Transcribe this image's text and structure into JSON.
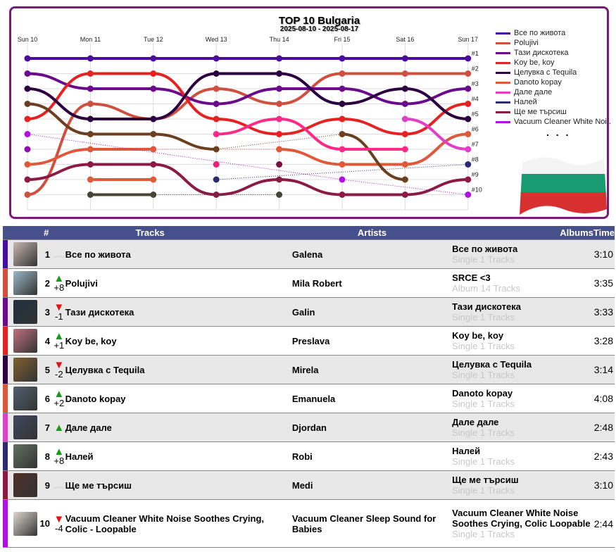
{
  "chart_data": {
    "type": "line",
    "title": "TOP 10 Bulgaria",
    "subtitle": "2025-08-10 - 2025-08-17",
    "x": [
      "Sun 10",
      "Mon 11",
      "Tue 12",
      "Wed 13",
      "Thu 14",
      "Fri 15",
      "Sat 16",
      "Sun 17"
    ],
    "rank_labels": [
      "#1",
      "#2",
      "#3",
      "#4",
      "#5",
      "#6",
      "#7",
      "#8",
      "#9",
      "#10"
    ],
    "ylim": [
      1,
      10
    ],
    "legend_more": ". . .",
    "series": [
      {
        "name": "Все по живота",
        "color": "#4a0ca0",
        "values": [
          1,
          1,
          1,
          1,
          1,
          1,
          1,
          1
        ]
      },
      {
        "name": "Polujivi",
        "color": "#d05040",
        "values": [
          10,
          4,
          5,
          3,
          4,
          2,
          2,
          2
        ]
      },
      {
        "name": "Тази дискотека",
        "color": "#6c0a8c",
        "values": [
          2,
          3,
          3,
          4,
          3,
          3,
          4,
          3
        ]
      },
      {
        "name": "Koy be, koy",
        "color": "#e52222",
        "values": [
          5,
          2,
          2,
          5,
          6,
          5,
          6,
          4
        ]
      },
      {
        "name": "Целувка с Tequila",
        "color": "#2c0040",
        "values": [
          3,
          5,
          5,
          2,
          2,
          4,
          3,
          5
        ]
      },
      {
        "name": "Danoto kopay",
        "color": "#e0583a",
        "values": [
          8,
          7,
          7,
          null,
          7,
          8,
          8,
          6
        ]
      },
      {
        "name": "Дале дале",
        "color": "#e040c8",
        "values": [
          null,
          null,
          null,
          null,
          null,
          null,
          5,
          7
        ]
      },
      {
        "name": "Налей",
        "color": "#2c2a70",
        "values": [
          null,
          null,
          null,
          9,
          null,
          null,
          null,
          8
        ]
      },
      {
        "name": "Ще ме търсиш",
        "color": "#8c1a44",
        "values": [
          9,
          8,
          8,
          10,
          9,
          10,
          10,
          9
        ]
      },
      {
        "name": "Vacuum Cleaner White Noi..",
        "color": "#b010e0",
        "values": [
          6,
          null,
          null,
          null,
          null,
          9,
          null,
          10
        ]
      },
      {
        "name": "",
        "color": "#6b3f1f",
        "values": [
          4,
          6,
          6,
          7,
          null,
          6,
          9,
          null
        ]
      },
      {
        "name": "",
        "color": "#ff2a88",
        "values": [
          null,
          null,
          null,
          6,
          5,
          7,
          7,
          null
        ]
      },
      {
        "name": "",
        "color": "#e05a3a",
        "values": [
          null,
          9,
          9,
          null,
          null,
          null,
          null,
          null
        ]
      },
      {
        "name": "",
        "color": "#454535",
        "values": [
          null,
          10,
          10,
          null,
          10,
          null,
          null,
          null
        ]
      },
      {
        "name": "",
        "color": "#9010b0",
        "values": [
          7,
          null,
          null,
          null,
          null,
          null,
          null,
          null
        ]
      },
      {
        "name": "",
        "color": "#e8207a",
        "values": [
          null,
          null,
          null,
          8,
          null,
          null,
          null,
          null
        ]
      },
      {
        "name": "",
        "color": "#7a1040",
        "values": [
          null,
          null,
          null,
          null,
          8,
          null,
          null,
          null
        ]
      }
    ]
  },
  "table": {
    "headers": {
      "num": "#",
      "tracks": "Tracks",
      "artists": "Artists",
      "albums": "Albums",
      "time": "Time"
    },
    "rows": [
      {
        "rank": "1",
        "dir": "same",
        "change": "",
        "track": "Все по живота",
        "artist": "Galena",
        "album": "Все по живота",
        "album_sub": "Single 1 Tracks",
        "time": "3:10",
        "color": "#4a0ca0",
        "thumb": "#c8b8b0"
      },
      {
        "rank": "2",
        "dir": "up",
        "change": "+8",
        "track": "Polujivi",
        "artist": "Mila Robert",
        "album": "SRCE <3",
        "album_sub": "Album 14 Tracks",
        "time": "3:35",
        "color": "#d05040",
        "thumb": "#9ab8c8"
      },
      {
        "rank": "3",
        "dir": "down",
        "change": "-1",
        "track": "Тази дискотека",
        "artist": "Galin",
        "album": "Тази дискотека",
        "album_sub": "Single 1 Tracks",
        "time": "3:33",
        "color": "#6c0a8c",
        "thumb": "#203040"
      },
      {
        "rank": "4",
        "dir": "up",
        "change": "+1",
        "track": "Koy be, koy",
        "artist": "Preslava",
        "album": "Koy be, koy",
        "album_sub": "Single 1 Tracks",
        "time": "3:28",
        "color": "#e52222",
        "thumb": "#c07080"
      },
      {
        "rank": "5",
        "dir": "down",
        "change": "-2",
        "track": "Целувка с Tequila",
        "artist": "Mirela",
        "album": "Целувка с Tequila",
        "album_sub": "Single 1 Tracks",
        "time": "3:14",
        "color": "#2c0040",
        "thumb": "#806030"
      },
      {
        "rank": "6",
        "dir": "up",
        "change": "+2",
        "track": "Danoto kopay",
        "artist": "Emanuela",
        "album": "Danoto kopay",
        "album_sub": "Single 1 Tracks",
        "time": "4:08",
        "color": "#e0583a",
        "thumb": "#506070"
      },
      {
        "rank": "7",
        "dir": "up",
        "change": "",
        "track": "Дале дале",
        "artist": "Djordan",
        "album": "Дале дале",
        "album_sub": "Single 1 Tracks",
        "time": "2:48",
        "color": "#e040c8",
        "thumb": "#404860"
      },
      {
        "rank": "8",
        "dir": "up",
        "change": "+8",
        "track": "Налей",
        "artist": "Robi",
        "album": "Налей",
        "album_sub": "Single 1 Tracks",
        "time": "2:43",
        "color": "#2c2a70",
        "thumb": "#607060"
      },
      {
        "rank": "9",
        "dir": "same",
        "change": "",
        "track": "Ще ме търсиш",
        "artist": "Medi",
        "album": "Ще ме търсиш",
        "album_sub": "Single 1 Tracks",
        "time": "3:10",
        "color": "#8c1a44",
        "thumb": "#503028"
      },
      {
        "rank": "10",
        "dir": "down",
        "change": "-4",
        "track": "Vacuum Cleaner White Noise Soothes Crying, Colic - Loopable",
        "artist": "Vacuum Cleaner Sleep Sound for Babies",
        "album": "Vacuum Cleaner White Noise Soothes Crying, Colic Loopable",
        "album_sub": "Single 1 Tracks",
        "time": "2:44",
        "color": "#b010e0",
        "thumb": "#e0d8d0"
      }
    ]
  }
}
